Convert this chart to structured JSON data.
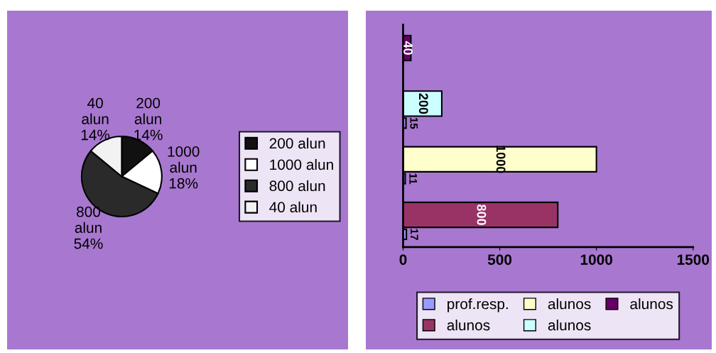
{
  "chart_data": [
    {
      "type": "pie",
      "categories": [
        "200 alun",
        "1000 alun",
        "800 alun",
        "40 alun"
      ],
      "values": [
        14,
        18,
        54,
        14
      ],
      "colors": [
        "#111111",
        "#ffffff",
        "#2a2a2a",
        "#f2f2f2"
      ],
      "value_labels": [
        "14%",
        "18%",
        "54%",
        "14%"
      ],
      "legend": "right"
    },
    {
      "type": "bar",
      "orientation": "horizontal",
      "categories": [
        null,
        null,
        null,
        null
      ],
      "series": [
        {
          "name": "alunos",
          "color": "#993366",
          "values": [
            null,
            null,
            null,
            800
          ]
        },
        {
          "name": "alunos",
          "color": "#ffffcc",
          "values": [
            null,
            null,
            1000,
            null
          ]
        },
        {
          "name": "alunos",
          "color": "#ccffff",
          "values": [
            null,
            200,
            null,
            null
          ]
        },
        {
          "name": "alunos",
          "color": "#660066",
          "values": [
            40,
            null,
            null,
            null
          ]
        },
        {
          "name": "prof.resp.",
          "color": "#9999ff",
          "values": [
            null,
            15,
            11,
            17
          ]
        }
      ],
      "xlim": [
        0,
        1500
      ],
      "xticks": [
        0,
        500,
        1000,
        1500
      ],
      "data_labels": true,
      "grid": false,
      "legend": "bottom"
    }
  ]
}
